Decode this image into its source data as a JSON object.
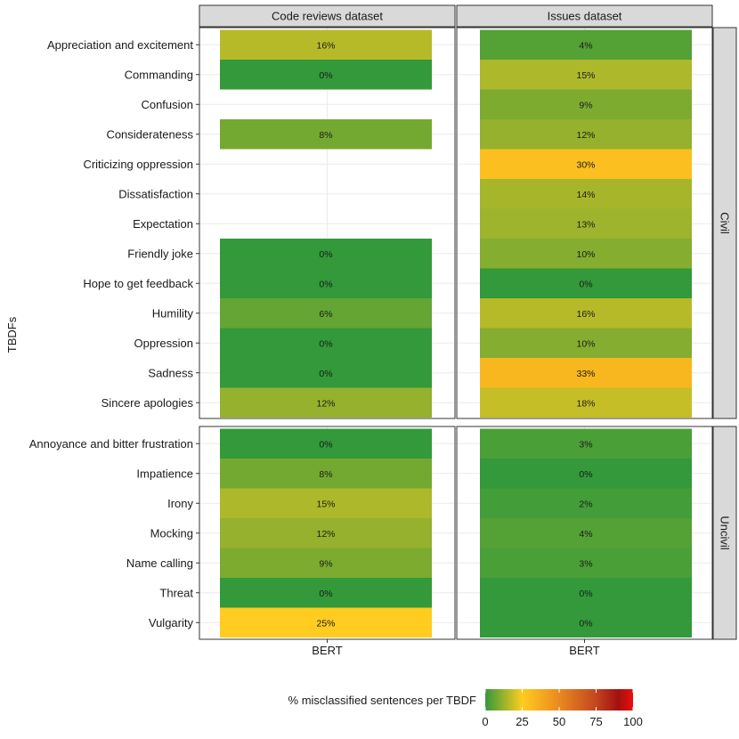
{
  "chart_data": {
    "type": "heatmap",
    "y_axis_title": "TBDFs",
    "x_tick_label": "BERT",
    "facet_columns": [
      "Code reviews dataset",
      "Issues dataset"
    ],
    "facet_rows": [
      {
        "label": "Civil",
        "categories": [
          "Appreciation and excitement",
          "Commanding",
          "Confusion",
          "Considerateness",
          "Criticizing oppression",
          "Dissatisfaction",
          "Expectation",
          "Friendly joke",
          "Hope to get feedback",
          "Humility",
          "Oppression",
          "Sadness",
          "Sincere apologies"
        ],
        "values": {
          "Code reviews dataset": [
            16,
            0,
            null,
            8,
            null,
            null,
            null,
            0,
            0,
            6,
            0,
            0,
            12
          ],
          "Issues dataset": [
            4,
            15,
            9,
            12,
            30,
            14,
            13,
            10,
            0,
            16,
            10,
            33,
            18
          ]
        }
      },
      {
        "label": "Uncivil",
        "categories": [
          "Annoyance and bitter frustration",
          "Impatience",
          "Irony",
          "Mocking",
          "Name calling",
          "Threat",
          "Vulgarity"
        ],
        "values": {
          "Code reviews dataset": [
            0,
            8,
            15,
            12,
            9,
            0,
            25
          ],
          "Issues dataset": [
            3,
            0,
            2,
            4,
            3,
            0,
            0
          ]
        }
      }
    ],
    "legend": {
      "title": "% misclassified sentences per TBDF",
      "ticks": [
        0,
        25,
        50,
        75,
        100
      ],
      "range": [
        0,
        100
      ],
      "gradient_stops": [
        {
          "value": 0,
          "color": "#33993a"
        },
        {
          "value": 25,
          "color": "#ffcc1f"
        },
        {
          "value": 50,
          "color": "#e98a20"
        },
        {
          "value": 75,
          "color": "#c1461f"
        },
        {
          "value": 90,
          "color": "#a21010"
        },
        {
          "value": 100,
          "color": "#ee0d0d"
        }
      ]
    }
  }
}
